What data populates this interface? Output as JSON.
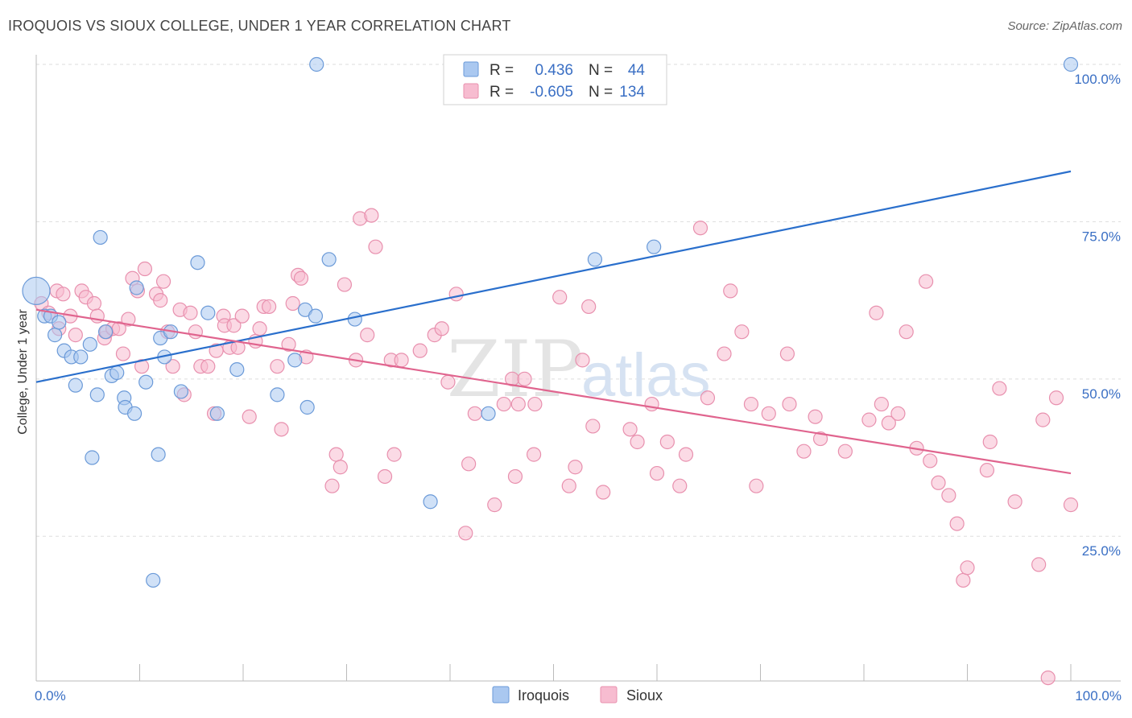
{
  "title": "IROQUOIS VS SIOUX COLLEGE, UNDER 1 YEAR CORRELATION CHART",
  "source": "Source: ZipAtlas.com",
  "watermark": {
    "part1": "ZIP",
    "part2": "atlas"
  },
  "colors": {
    "iroquois_fill": "#aac8f0",
    "iroquois_stroke": "#6b9ad8",
    "iroquois_line": "#2a6fcc",
    "sioux_fill": "#f7bcd0",
    "sioux_stroke": "#e890ae",
    "sioux_line": "#e0648e",
    "tick_label": "#3a6fc4",
    "grid": "#dddddd"
  },
  "legend": {
    "rows": [
      {
        "r_label": "R =",
        "r_value": "0.436",
        "n_label": "N =",
        "n_value": "44",
        "series": "iroquois"
      },
      {
        "r_label": "R =",
        "r_value": "-0.605",
        "n_label": "N =",
        "n_value": "134",
        "series": "sioux"
      }
    ]
  },
  "chart_data": {
    "type": "scatter",
    "title": "IROQUOIS VS SIOUX COLLEGE, UNDER 1 YEAR CORRELATION CHART",
    "xlabel": "",
    "ylabel": "College, Under 1 year",
    "xlim": [
      0,
      100
    ],
    "ylim": [
      2,
      100
    ],
    "x_tick_labels": [
      "0.0%",
      "100.0%"
    ],
    "y_ticks": [
      25,
      50,
      75,
      100
    ],
    "y_tick_labels": [
      "25.0%",
      "50.0%",
      "75.0%",
      "100.0%"
    ],
    "grid": "horizontal dashed",
    "legend_position": "top-center",
    "series": [
      {
        "name": "Iroquois",
        "trend": {
          "x": [
            0,
            100
          ],
          "y": [
            49.5,
            83
          ]
        },
        "points": [
          [
            0,
            64
          ],
          [
            0.8,
            60
          ],
          [
            1.4,
            60
          ],
          [
            1.8,
            57
          ],
          [
            2.2,
            59
          ],
          [
            2.7,
            54.5
          ],
          [
            3.4,
            53.5
          ],
          [
            3.8,
            49
          ],
          [
            4.3,
            53.5
          ],
          [
            5.2,
            55.5
          ],
          [
            5.4,
            37.5
          ],
          [
            5.9,
            47.5
          ],
          [
            6.2,
            72.5
          ],
          [
            6.7,
            57.5
          ],
          [
            7.3,
            50.5
          ],
          [
            7.8,
            51
          ],
          [
            8.5,
            47
          ],
          [
            8.6,
            45.5
          ],
          [
            9.5,
            44.5
          ],
          [
            9.7,
            64.5
          ],
          [
            10.6,
            49.5
          ],
          [
            11.3,
            18
          ],
          [
            11.8,
            38
          ],
          [
            12.0,
            56.5
          ],
          [
            12.4,
            53.5
          ],
          [
            13.0,
            57.5
          ],
          [
            14.0,
            48
          ],
          [
            15.6,
            68.5
          ],
          [
            16.6,
            60.5
          ],
          [
            17.5,
            44.5
          ],
          [
            19.4,
            51.5
          ],
          [
            23.3,
            47.5
          ],
          [
            25.0,
            53
          ],
          [
            26.0,
            61
          ],
          [
            26.2,
            45.5
          ],
          [
            27.0,
            60
          ],
          [
            27.1,
            100
          ],
          [
            28.3,
            69
          ],
          [
            30.8,
            59.5
          ],
          [
            38.1,
            30.5
          ],
          [
            43.7,
            44.5
          ],
          [
            54.0,
            69
          ],
          [
            59.7,
            71
          ],
          [
            100,
            100
          ]
        ]
      },
      {
        "name": "Sioux",
        "trend": {
          "x": [
            0,
            100
          ],
          "y": [
            61,
            35
          ]
        },
        "points": [
          [
            0.5,
            62
          ],
          [
            1.2,
            60.5
          ],
          [
            2.0,
            64
          ],
          [
            2.2,
            58
          ],
          [
            2.6,
            63.5
          ],
          [
            3.3,
            60
          ],
          [
            3.8,
            57
          ],
          [
            4.4,
            64
          ],
          [
            4.8,
            63
          ],
          [
            5.6,
            62
          ],
          [
            5.9,
            60
          ],
          [
            6.6,
            56.5
          ],
          [
            6.8,
            57.5
          ],
          [
            7.4,
            58
          ],
          [
            8.0,
            58
          ],
          [
            8.4,
            54
          ],
          [
            8.9,
            59.5
          ],
          [
            9.3,
            66
          ],
          [
            9.8,
            64
          ],
          [
            10.2,
            52
          ],
          [
            10.5,
            67.5
          ],
          [
            11.6,
            63.5
          ],
          [
            12.0,
            62.5
          ],
          [
            12.3,
            65.5
          ],
          [
            12.7,
            57.5
          ],
          [
            13.2,
            52
          ],
          [
            13.9,
            61
          ],
          [
            14.3,
            47.5
          ],
          [
            14.9,
            60.5
          ],
          [
            15.4,
            57.5
          ],
          [
            15.9,
            52
          ],
          [
            16.6,
            52
          ],
          [
            17.2,
            44.5
          ],
          [
            17.4,
            54.5
          ],
          [
            18.1,
            60
          ],
          [
            18.2,
            58.5
          ],
          [
            18.7,
            55
          ],
          [
            19.1,
            58.5
          ],
          [
            19.5,
            55
          ],
          [
            19.9,
            60
          ],
          [
            20.6,
            44
          ],
          [
            21.2,
            56
          ],
          [
            21.6,
            58
          ],
          [
            22.0,
            61.5
          ],
          [
            22.5,
            61.5
          ],
          [
            23.3,
            52
          ],
          [
            23.7,
            42
          ],
          [
            24.4,
            55.5
          ],
          [
            24.8,
            62
          ],
          [
            25.3,
            66.5
          ],
          [
            25.6,
            66
          ],
          [
            26.1,
            53.5
          ],
          [
            28.6,
            33
          ],
          [
            29.0,
            38
          ],
          [
            29.4,
            36
          ],
          [
            29.8,
            65
          ],
          [
            30.9,
            53
          ],
          [
            31.3,
            75.5
          ],
          [
            32.0,
            57
          ],
          [
            32.4,
            76
          ],
          [
            32.8,
            71
          ],
          [
            33.7,
            34.5
          ],
          [
            34.3,
            53
          ],
          [
            34.6,
            38
          ],
          [
            35.3,
            53
          ],
          [
            37.1,
            54.5
          ],
          [
            38.5,
            57
          ],
          [
            39.2,
            58
          ],
          [
            39.8,
            49.5
          ],
          [
            40.6,
            63.5
          ],
          [
            41.5,
            25.5
          ],
          [
            41.8,
            36.5
          ],
          [
            42.4,
            44.5
          ],
          [
            44.3,
            30
          ],
          [
            45.2,
            46
          ],
          [
            46.0,
            50
          ],
          [
            46.6,
            46
          ],
          [
            46.3,
            34.5
          ],
          [
            47.2,
            50
          ],
          [
            48.2,
            46
          ],
          [
            48.1,
            38
          ],
          [
            50.6,
            63
          ],
          [
            51.5,
            33
          ],
          [
            52.1,
            36
          ],
          [
            52.8,
            53
          ],
          [
            53.4,
            61.5
          ],
          [
            53.8,
            42.5
          ],
          [
            54.8,
            32
          ],
          [
            57.4,
            42
          ],
          [
            58.1,
            40
          ],
          [
            59.5,
            46
          ],
          [
            60.0,
            35
          ],
          [
            61.0,
            40
          ],
          [
            62.2,
            33
          ],
          [
            62.8,
            38
          ],
          [
            64.2,
            74
          ],
          [
            64.9,
            47
          ],
          [
            66.5,
            54
          ],
          [
            67.1,
            64
          ],
          [
            68.2,
            57.5
          ],
          [
            69.1,
            46
          ],
          [
            69.6,
            33
          ],
          [
            70.8,
            44.5
          ],
          [
            72.6,
            54
          ],
          [
            72.8,
            46
          ],
          [
            74.2,
            38.5
          ],
          [
            75.3,
            44
          ],
          [
            75.8,
            40.5
          ],
          [
            78.2,
            38.5
          ],
          [
            80.5,
            43.5
          ],
          [
            81.2,
            60.5
          ],
          [
            81.7,
            46
          ],
          [
            82.4,
            43
          ],
          [
            83.3,
            44.5
          ],
          [
            84.1,
            57.5
          ],
          [
            85.1,
            39
          ],
          [
            86.0,
            65.5
          ],
          [
            86.4,
            37
          ],
          [
            87.2,
            33.5
          ],
          [
            88.2,
            31.5
          ],
          [
            89.0,
            27
          ],
          [
            89.6,
            18
          ],
          [
            90.0,
            20
          ],
          [
            91.9,
            35.5
          ],
          [
            92.2,
            40
          ],
          [
            93.1,
            48.5
          ],
          [
            94.6,
            30.5
          ],
          [
            96.9,
            20.5
          ],
          [
            97.3,
            43.5
          ],
          [
            97.8,
            2.5
          ],
          [
            98.6,
            47
          ],
          [
            100,
            30
          ]
        ]
      }
    ]
  },
  "bottom_legend": [
    {
      "label": "Iroquois",
      "series": "iroquois"
    },
    {
      "label": "Sioux",
      "series": "sioux"
    }
  ]
}
